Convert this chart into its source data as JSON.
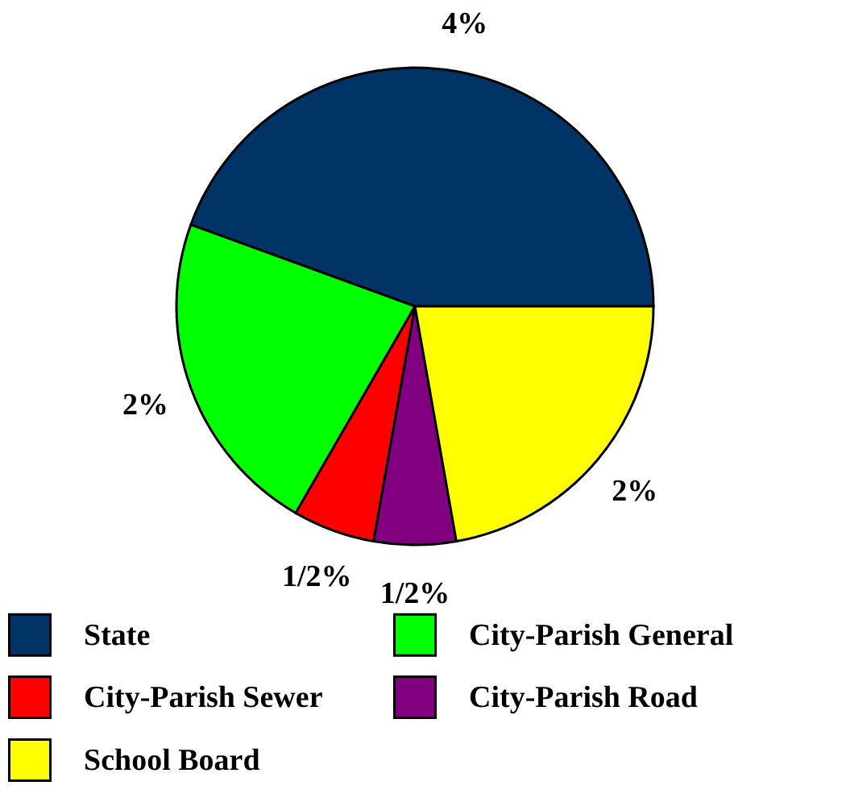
{
  "chart_data": {
    "type": "pie",
    "categories": [
      "State",
      "City-Parish General",
      "City-Parish Sewer",
      "City-Parish Road",
      "School Board"
    ],
    "values": [
      4,
      2,
      0.5,
      0.5,
      2
    ],
    "colors": [
      "#003366",
      "#00ff00",
      "#ff0000",
      "#800080",
      "#ffff00"
    ],
    "value_labels": [
      "4%",
      "2%",
      "1/2%",
      "1/2%",
      "2%"
    ],
    "legend": "bottom"
  }
}
